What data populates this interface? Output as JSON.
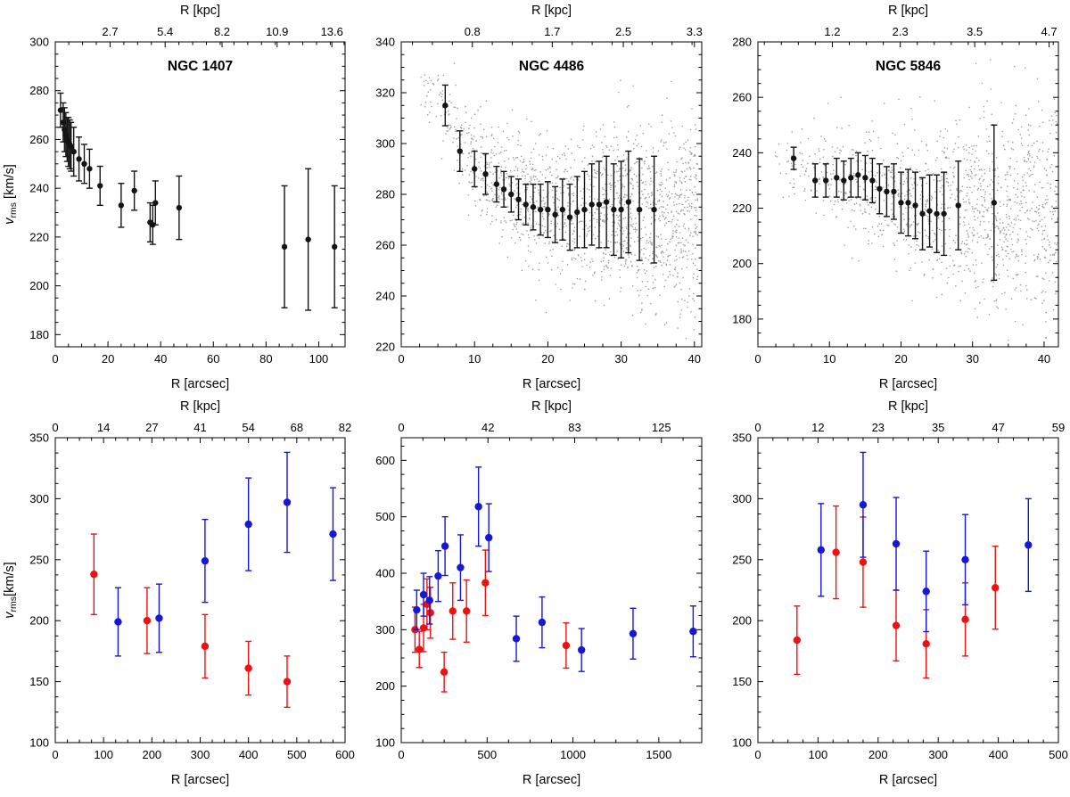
{
  "page": {
    "background": "#ffffff"
  },
  "styles": {
    "black": "#141414",
    "red": "#ee1111",
    "blue": "#1717d6",
    "cloud": "#8c8c8c"
  },
  "chart_data": [
    {
      "id": "ngc1407-inner",
      "type": "scatter",
      "title": "NGC 1407",
      "xlabel": "R [arcsec]",
      "top_xlabel": "R [kpc]",
      "ylabel": {
        "base": "v",
        "sub": "rms",
        "unit": " [km/s]"
      },
      "xlim": [
        0,
        110
      ],
      "ylim": [
        175,
        300
      ],
      "xticks": [
        0,
        20,
        40,
        60,
        80,
        100
      ],
      "yticks": [
        180,
        200,
        220,
        240,
        260,
        280,
        300
      ],
      "top_ticks": [
        {
          "label": "2.7",
          "x": 20.8
        },
        {
          "label": "5.4",
          "x": 41.7
        },
        {
          "label": "8.2",
          "x": 63.3
        },
        {
          "label": "10.9",
          "x": 84.2
        },
        {
          "label": "13.6",
          "x": 105
        }
      ],
      "series": [
        {
          "name": "binned-black",
          "color": "#141414",
          "marker": 3.2,
          "points": [
            [
              2,
              272,
              7
            ],
            [
              3,
              267,
              8
            ],
            [
              3.5,
              264,
              9
            ],
            [
              4,
              262,
              9
            ],
            [
              4.5,
              260,
              9
            ],
            [
              5,
              259,
              10
            ],
            [
              5.5,
              258,
              10
            ],
            [
              6,
              257,
              10
            ],
            [
              7,
              255,
              10
            ],
            [
              9,
              252,
              9
            ],
            [
              11,
              250,
              8
            ],
            [
              13,
              248,
              8
            ],
            [
              17,
              241,
              8
            ],
            [
              25,
              233,
              9
            ],
            [
              30,
              239,
              8
            ],
            [
              36,
              226,
              8
            ],
            [
              37,
              225,
              8
            ],
            [
              38,
              234,
              9
            ],
            [
              47,
              232,
              13
            ],
            [
              87,
              216,
              25
            ],
            [
              96,
              219,
              29
            ],
            [
              106,
              216,
              25
            ]
          ]
        }
      ]
    },
    {
      "id": "ngc4486-inner",
      "type": "scatter",
      "title": "NGC 4486",
      "xlabel": "R [arcsec]",
      "top_xlabel": "R [kpc]",
      "ylabel": null,
      "xlim": [
        0,
        41
      ],
      "ylim": [
        220,
        340
      ],
      "xticks": [
        0,
        10,
        20,
        30,
        40
      ],
      "yticks": [
        220,
        240,
        260,
        280,
        300,
        320,
        340
      ],
      "top_ticks": [
        {
          "label": "0.8",
          "x": 9.7
        },
        {
          "label": "1.7",
          "x": 20.6
        },
        {
          "label": "2.5",
          "x": 30.3
        },
        {
          "label": "3.3",
          "x": 40
        }
      ],
      "cloud": {
        "seed": 20,
        "n": 1600,
        "r_min": 2.5,
        "r_max": 40.5,
        "r_pow": 0.65,
        "trend": [
          [
            2.5,
            324
          ],
          [
            6,
            312
          ],
          [
            10,
            293
          ],
          [
            14,
            282
          ],
          [
            20,
            275
          ],
          [
            30,
            273
          ],
          [
            40,
            271
          ]
        ],
        "sigma": [
          [
            2.5,
            6
          ],
          [
            10,
            9
          ],
          [
            20,
            13
          ],
          [
            40,
            19
          ]
        ]
      },
      "series": [
        {
          "name": "binned-black",
          "color": "#141414",
          "marker": 3.2,
          "points": [
            [
              6,
              315,
              8
            ],
            [
              8,
              297,
              8
            ],
            [
              10,
              290,
              7
            ],
            [
              11.5,
              288,
              8
            ],
            [
              13,
              284,
              7
            ],
            [
              14,
              282,
              7
            ],
            [
              15,
              280,
              7
            ],
            [
              16,
              278,
              8
            ],
            [
              17,
              276,
              8
            ],
            [
              18,
              275,
              9
            ],
            [
              19,
              274,
              10
            ],
            [
              20,
              274,
              11
            ],
            [
              21,
              272,
              11
            ],
            [
              22,
              274,
              12
            ],
            [
              23,
              271,
              13
            ],
            [
              24,
              273,
              14
            ],
            [
              25,
              274,
              15
            ],
            [
              26,
              276,
              16
            ],
            [
              27,
              276,
              17
            ],
            [
              28,
              277,
              18
            ],
            [
              29,
              274,
              18
            ],
            [
              30,
              274,
              19
            ],
            [
              31,
              277,
              20
            ],
            [
              32.5,
              274,
              20
            ],
            [
              34.5,
              274,
              21
            ]
          ]
        }
      ]
    },
    {
      "id": "ngc5846-inner",
      "type": "scatter",
      "title": "NGC 5846",
      "xlabel": "R [arcsec]",
      "top_xlabel": "R [kpc]",
      "ylabel": null,
      "xlim": [
        0,
        42
      ],
      "ylim": [
        170,
        280
      ],
      "xticks": [
        0,
        10,
        20,
        30,
        40
      ],
      "yticks": [
        180,
        200,
        220,
        240,
        260,
        280
      ],
      "top_ticks": [
        {
          "label": "1.2",
          "x": 10.4
        },
        {
          "label": "2.3",
          "x": 19.9
        },
        {
          "label": "3.5",
          "x": 30.3
        },
        {
          "label": "4.7",
          "x": 40.7
        }
      ],
      "cloud": {
        "seed": 7,
        "n": 1200,
        "r_min": 2,
        "r_max": 42,
        "r_pow": 0.6,
        "trend": [
          [
            2,
            237
          ],
          [
            10,
            231
          ],
          [
            20,
            226
          ],
          [
            30,
            220
          ],
          [
            42,
            216
          ]
        ],
        "sigma": [
          [
            2,
            4
          ],
          [
            10,
            8
          ],
          [
            20,
            13
          ],
          [
            30,
            17
          ],
          [
            42,
            20
          ]
        ]
      },
      "series": [
        {
          "name": "binned-black",
          "color": "#141414",
          "marker": 3.2,
          "points": [
            [
              5,
              238,
              4
            ],
            [
              8,
              230,
              6
            ],
            [
              9.5,
              230,
              6
            ],
            [
              11,
              231,
              7
            ],
            [
              12,
              230,
              7
            ],
            [
              13,
              231,
              7
            ],
            [
              14,
              232,
              8
            ],
            [
              15,
              231,
              8
            ],
            [
              16,
              230,
              8
            ],
            [
              17,
              227,
              9
            ],
            [
              18,
              226,
              9
            ],
            [
              19,
              226,
              10
            ],
            [
              20,
              222,
              11
            ],
            [
              21,
              222,
              12
            ],
            [
              22,
              221,
              12
            ],
            [
              23,
              218,
              13
            ],
            [
              24,
              219,
              13
            ],
            [
              25,
              218,
              14
            ],
            [
              26,
              218,
              15
            ],
            [
              28,
              221,
              16
            ],
            [
              33,
              222,
              28
            ]
          ]
        }
      ]
    },
    {
      "id": "ngc1407-outer",
      "type": "scatter",
      "title": "",
      "xlabel": "R [arcsec]",
      "top_xlabel": "R [kpc]",
      "ylabel": {
        "base": "v",
        "sub": "rms",
        "unit": "[km/s]"
      },
      "xlim": [
        0,
        600
      ],
      "ylim": [
        100,
        350
      ],
      "xticks": [
        0,
        100,
        200,
        300,
        400,
        500,
        600
      ],
      "yticks": [
        100,
        150,
        200,
        250,
        300,
        350
      ],
      "top_ticks": [
        {
          "label": "0",
          "x": 0
        },
        {
          "label": "14",
          "x": 100
        },
        {
          "label": "27",
          "x": 200
        },
        {
          "label": "41",
          "x": 300
        },
        {
          "label": "54",
          "x": 400
        },
        {
          "label": "68",
          "x": 500
        },
        {
          "label": "82",
          "x": 600
        }
      ],
      "series": [
        {
          "name": "red-tracer",
          "color": "#ee1111",
          "marker": 4.2,
          "points": [
            [
              80,
              238,
              33
            ],
            [
              190,
              200,
              27
            ],
            [
              310,
              179,
              26
            ],
            [
              400,
              161,
              22
            ],
            [
              480,
              150,
              21
            ]
          ]
        },
        {
          "name": "blue-tracer",
          "color": "#1717d6",
          "marker": 4.2,
          "points": [
            [
              130,
              199,
              28
            ],
            [
              215,
              202,
              28
            ],
            [
              310,
              249,
              34
            ],
            [
              400,
              279,
              38
            ],
            [
              480,
              297,
              41
            ],
            [
              575,
              271,
              38
            ]
          ]
        }
      ]
    },
    {
      "id": "ngc4486-outer",
      "type": "scatter",
      "title": "",
      "xlabel": "R [arcsec]",
      "top_xlabel": "R [kpc]",
      "ylabel": null,
      "xlim": [
        0,
        1750
      ],
      "ylim": [
        100,
        640
      ],
      "xticks": [
        0,
        500,
        1000,
        1500
      ],
      "yticks": [
        100,
        200,
        300,
        400,
        500,
        600
      ],
      "top_ticks": [
        {
          "label": "0",
          "x": 0
        },
        {
          "label": "42",
          "x": 505
        },
        {
          "label": "83",
          "x": 1010
        },
        {
          "label": "125",
          "x": 1515
        }
      ],
      "series": [
        {
          "name": "red-tracer",
          "color": "#ee1111",
          "marker": 4.2,
          "points": [
            [
              80,
              300,
              40
            ],
            [
              105,
              265,
              32
            ],
            [
              130,
              303,
              42
            ],
            [
              150,
              345,
              45
            ],
            [
              170,
              330,
              45
            ],
            [
              250,
              225,
              35
            ],
            [
              300,
              333,
              50
            ],
            [
              380,
              333,
              55
            ],
            [
              490,
              383,
              58
            ],
            [
              960,
              272,
              40
            ]
          ]
        },
        {
          "name": "blue-tracer",
          "color": "#1717d6",
          "marker": 4.2,
          "points": [
            [
              90,
              335,
              35
            ],
            [
              130,
              362,
              38
            ],
            [
              165,
              352,
              42
            ],
            [
              215,
              395,
              45
            ],
            [
              255,
              448,
              52
            ],
            [
              345,
              410,
              58
            ],
            [
              450,
              518,
              70
            ],
            [
              510,
              463,
              60
            ],
            [
              670,
              284,
              40
            ],
            [
              820,
              313,
              45
            ],
            [
              1050,
              264,
              38
            ],
            [
              1350,
              293,
              45
            ],
            [
              1700,
              297,
              45
            ]
          ]
        }
      ]
    },
    {
      "id": "ngc5846-outer",
      "type": "scatter",
      "title": "",
      "xlabel": "R [arcsec]",
      "top_xlabel": "R [kpc]",
      "ylabel": null,
      "xlim": [
        0,
        500
      ],
      "ylim": [
        100,
        350
      ],
      "xticks": [
        0,
        100,
        200,
        300,
        400,
        500
      ],
      "yticks": [
        100,
        150,
        200,
        250,
        300,
        350
      ],
      "top_ticks": [
        {
          "label": "0",
          "x": 0
        },
        {
          "label": "12",
          "x": 100
        },
        {
          "label": "23",
          "x": 200
        },
        {
          "label": "35",
          "x": 300
        },
        {
          "label": "47",
          "x": 400
        },
        {
          "label": "59",
          "x": 500
        }
      ],
      "series": [
        {
          "name": "red-tracer",
          "color": "#ee1111",
          "marker": 4.2,
          "points": [
            [
              65,
              184,
              28
            ],
            [
              130,
              256,
              38
            ],
            [
              175,
              248,
              37
            ],
            [
              230,
              196,
              29
            ],
            [
              280,
              181,
              28
            ],
            [
              345,
              201,
              30
            ],
            [
              395,
              227,
              34
            ]
          ]
        },
        {
          "name": "blue-tracer",
          "color": "#1717d6",
          "marker": 4.2,
          "points": [
            [
              105,
              258,
              38
            ],
            [
              175,
              295,
              43
            ],
            [
              230,
              263,
              38
            ],
            [
              280,
              224,
              33
            ],
            [
              345,
              250,
              37
            ],
            [
              450,
              262,
              38
            ]
          ]
        }
      ]
    }
  ]
}
